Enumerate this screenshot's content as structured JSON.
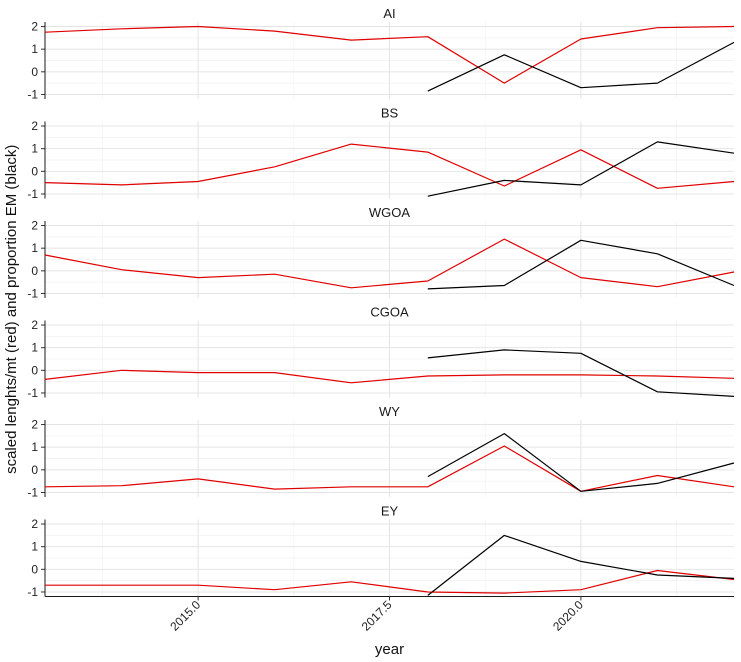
{
  "chart_data": {
    "type": "line",
    "xlabel": "year",
    "ylabel": "scaled lenghts/mt (red) and proportion EM (black)",
    "xlim": [
      2013,
      2022
    ],
    "ylim": [
      -1.2,
      2.2
    ],
    "x_ticks": [
      2015.0,
      2017.5,
      2020.0
    ],
    "x_tick_labels": [
      "2015.0",
      "2017.5",
      "2020.0"
    ],
    "y_ticks": [
      -1,
      0,
      1,
      2
    ],
    "y_tick_labels": [
      "-1",
      "0",
      "1",
      "2"
    ],
    "series_colors": {
      "red": "#e00000",
      "black": "#000000"
    },
    "grid": true,
    "panels": [
      {
        "title": "AI",
        "red": {
          "x": [
            2013,
            2014,
            2015,
            2016,
            2017,
            2018,
            2019,
            2020,
            2021,
            2022
          ],
          "y": [
            1.75,
            1.9,
            2.0,
            1.8,
            1.4,
            1.55,
            -0.5,
            1.45,
            1.95,
            2.0
          ]
        },
        "black": {
          "x": [
            2018,
            2019,
            2020,
            2021,
            2022
          ],
          "y": [
            -0.85,
            0.75,
            -0.7,
            -0.5,
            1.3
          ]
        }
      },
      {
        "title": "BS",
        "red": {
          "x": [
            2013,
            2014,
            2015,
            2016,
            2017,
            2018,
            2019,
            2020,
            2021,
            2022
          ],
          "y": [
            -0.5,
            -0.6,
            -0.45,
            0.2,
            1.2,
            0.85,
            -0.65,
            0.95,
            -0.75,
            -0.45
          ]
        },
        "black": {
          "x": [
            2018,
            2019,
            2020,
            2021,
            2022
          ],
          "y": [
            -1.1,
            -0.4,
            -0.6,
            1.3,
            0.8
          ]
        }
      },
      {
        "title": "WGOA",
        "red": {
          "x": [
            2013,
            2014,
            2015,
            2016,
            2017,
            2018,
            2019,
            2020,
            2021,
            2022
          ],
          "y": [
            0.7,
            0.05,
            -0.3,
            -0.15,
            -0.75,
            -0.45,
            1.4,
            -0.3,
            -0.7,
            -0.05
          ]
        },
        "black": {
          "x": [
            2018,
            2019,
            2020,
            2021,
            2022
          ],
          "y": [
            -0.8,
            -0.65,
            1.35,
            0.75,
            -0.65
          ]
        }
      },
      {
        "title": "CGOA",
        "red": {
          "x": [
            2013,
            2014,
            2015,
            2016,
            2017,
            2018,
            2019,
            2020,
            2021,
            2022
          ],
          "y": [
            -0.4,
            0.0,
            -0.1,
            -0.1,
            -0.55,
            -0.25,
            -0.2,
            -0.2,
            -0.25,
            -0.35
          ]
        },
        "black": {
          "x": [
            2018,
            2019,
            2020,
            2021,
            2022
          ],
          "y": [
            0.55,
            0.9,
            0.75,
            -0.95,
            -1.15
          ]
        }
      },
      {
        "title": "WY",
        "red": {
          "x": [
            2013,
            2014,
            2015,
            2016,
            2017,
            2018,
            2019,
            2020,
            2021,
            2022
          ],
          "y": [
            -0.75,
            -0.7,
            -0.4,
            -0.85,
            -0.75,
            -0.75,
            1.05,
            -0.95,
            -0.25,
            -0.75
          ]
        },
        "black": {
          "x": [
            2018,
            2019,
            2020,
            2021,
            2022
          ],
          "y": [
            -0.3,
            1.6,
            -0.95,
            -0.6,
            0.3
          ]
        }
      },
      {
        "title": "EY",
        "red": {
          "x": [
            2013,
            2014,
            2015,
            2016,
            2017,
            2018,
            2019,
            2020,
            2021,
            2022
          ],
          "y": [
            -0.7,
            -0.7,
            -0.7,
            -0.9,
            -0.55,
            -1.0,
            -1.05,
            -0.9,
            -0.05,
            -0.45
          ]
        },
        "black": {
          "x": [
            2018,
            2019,
            2020,
            2021,
            2022
          ],
          "y": [
            -1.15,
            1.5,
            0.35,
            -0.25,
            -0.4
          ]
        }
      }
    ]
  }
}
